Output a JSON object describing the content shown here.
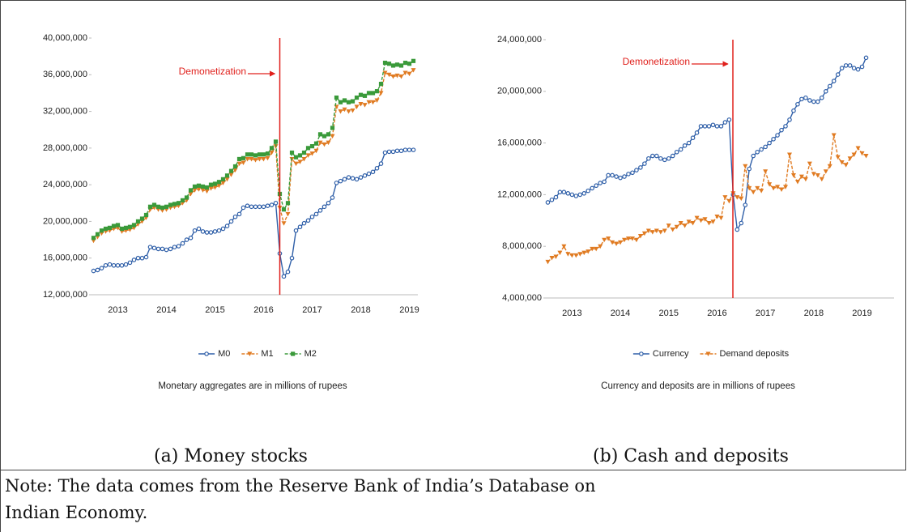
{
  "chart_data": [
    {
      "type": "line",
      "annotation": "Demonetization",
      "categories": [
        null,
        null,
        null,
        null,
        null,
        null,
        "2013",
        null,
        null,
        null,
        null,
        null,
        null,
        null,
        null,
        null,
        null,
        null,
        "2014",
        null,
        null,
        null,
        null,
        null,
        null,
        null,
        null,
        null,
        null,
        null,
        "2015",
        null,
        null,
        null,
        null,
        null,
        null,
        null,
        null,
        null,
        null,
        null,
        "2016",
        null,
        null,
        null,
        null,
        null,
        null,
        null,
        null,
        null,
        null,
        null,
        "2017",
        null,
        null,
        null,
        null,
        null,
        null,
        null,
        null,
        null,
        null,
        null,
        "2018",
        null,
        null,
        null,
        null,
        null,
        null,
        null,
        null,
        null,
        null,
        null,
        "2019",
        null
      ],
      "series": [
        {
          "name": "M0",
          "color": "#2f5fa8",
          "marker": "circle",
          "values": [
            14600000,
            14700000,
            14900000,
            15200000,
            15300000,
            15200000,
            15200000,
            15200000,
            15300000,
            15500000,
            15800000,
            16000000,
            16000000,
            16100000,
            17200000,
            17100000,
            17000000,
            17000000,
            16900000,
            17000000,
            17200000,
            17300000,
            17600000,
            18000000,
            18200000,
            19000000,
            19200000,
            18900000,
            18800000,
            18800000,
            18900000,
            19000000,
            19200000,
            19500000,
            20000000,
            20500000,
            20800000,
            21500000,
            21700000,
            21600000,
            21600000,
            21600000,
            21600000,
            21700000,
            21800000,
            22000000,
            16500000,
            14000000,
            14500000,
            16000000,
            19000000,
            19400000,
            19800000,
            20100000,
            20500000,
            20800000,
            21200000,
            21600000,
            22000000,
            22600000,
            24200000,
            24400000,
            24600000,
            24800000,
            24700000,
            24600000,
            24800000,
            25000000,
            25200000,
            25400000,
            25800000,
            26300000,
            27500000,
            27600000,
            27600000,
            27700000,
            27700000,
            27800000,
            27800000,
            27800000
          ]
        },
        {
          "name": "M1",
          "color": "#e07b22",
          "marker": "triangle",
          "values": [
            17900000,
            18300000,
            18700000,
            18900000,
            19000000,
            19200000,
            19300000,
            18900000,
            19000000,
            19100000,
            19300000,
            19700000,
            20000000,
            20400000,
            21300000,
            21500000,
            21300000,
            21200000,
            21300000,
            21500000,
            21600000,
            21700000,
            22000000,
            22300000,
            23000000,
            23400000,
            23500000,
            23400000,
            23300000,
            23600000,
            23700000,
            23900000,
            24200000,
            24600000,
            25100000,
            25600000,
            26300000,
            26400000,
            26800000,
            26800000,
            26700000,
            26800000,
            26800000,
            26900000,
            27500000,
            28200000,
            21500000,
            19800000,
            20800000,
            26800000,
            26300000,
            26500000,
            26800000,
            27200000,
            27400000,
            27700000,
            28600000,
            28400000,
            28600000,
            29300000,
            32500000,
            32000000,
            32200000,
            32000000,
            32100000,
            32500000,
            32800000,
            32700000,
            33000000,
            33000000,
            33200000,
            34000000,
            36200000,
            36000000,
            35800000,
            35900000,
            35800000,
            36200000,
            36100000,
            36500000
          ]
        },
        {
          "name": "M2",
          "color": "#3a9a3a",
          "marker": "square",
          "values": [
            18200000,
            18600000,
            19000000,
            19200000,
            19300000,
            19500000,
            19600000,
            19200000,
            19300000,
            19400000,
            19600000,
            20000000,
            20300000,
            20700000,
            21600000,
            21800000,
            21600000,
            21500000,
            21600000,
            21800000,
            21900000,
            22000000,
            22300000,
            22600000,
            23400000,
            23800000,
            23900000,
            23800000,
            23700000,
            24000000,
            24100000,
            24300000,
            24600000,
            25000000,
            25500000,
            26000000,
            26800000,
            26900000,
            27300000,
            27300000,
            27200000,
            27300000,
            27300000,
            27400000,
            28000000,
            28700000,
            23000000,
            21300000,
            22000000,
            27500000,
            27000000,
            27200000,
            27500000,
            28000000,
            28200000,
            28500000,
            29500000,
            29300000,
            29500000,
            30200000,
            33500000,
            33000000,
            33200000,
            33000000,
            33100000,
            33500000,
            33800000,
            33700000,
            34000000,
            34000000,
            34200000,
            35000000,
            37300000,
            37200000,
            37000000,
            37100000,
            37000000,
            37300000,
            37200000,
            37500000
          ]
        }
      ],
      "ylim": [
        12000000,
        40000000
      ],
      "yticks": [
        {
          "value": 12000000,
          "label": "12,000,000"
        },
        {
          "value": 16000000,
          "label": "16,000,000"
        },
        {
          "value": 20000000,
          "label": "20,000,000"
        },
        {
          "value": 24000000,
          "label": "24,000,000"
        },
        {
          "value": 28000000,
          "label": "28,000,000"
        },
        {
          "value": 32000000,
          "label": "32,000,000"
        },
        {
          "value": 36000000,
          "label": "36,000,000"
        },
        {
          "value": 40000000,
          "label": "40,000,000"
        }
      ],
      "description": "Monetary aggregates are in millions of rupees",
      "caption": "(a) Money stocks"
    },
    {
      "type": "line",
      "annotation": "Demonetization",
      "categories": [
        null,
        null,
        null,
        null,
        null,
        null,
        "2013",
        null,
        null,
        null,
        null,
        null,
        null,
        null,
        null,
        null,
        null,
        null,
        "2014",
        null,
        null,
        null,
        null,
        null,
        null,
        null,
        null,
        null,
        null,
        null,
        "2015",
        null,
        null,
        null,
        null,
        null,
        null,
        null,
        null,
        null,
        null,
        null,
        "2016",
        null,
        null,
        null,
        null,
        null,
        null,
        null,
        null,
        null,
        null,
        null,
        "2017",
        null,
        null,
        null,
        null,
        null,
        null,
        null,
        null,
        null,
        null,
        null,
        "2018",
        null,
        null,
        null,
        null,
        null,
        null,
        null,
        null,
        null,
        null,
        null,
        "2019",
        null
      ],
      "series": [
        {
          "name": "Currency",
          "color": "#2f5fa8",
          "marker": "circle",
          "values": [
            11400000,
            11600000,
            11800000,
            12200000,
            12200000,
            12100000,
            12000000,
            11900000,
            12000000,
            12100000,
            12300000,
            12500000,
            12700000,
            12900000,
            13000000,
            13500000,
            13500000,
            13400000,
            13300000,
            13400000,
            13600000,
            13700000,
            13900000,
            14100000,
            14400000,
            14800000,
            15000000,
            15000000,
            14800000,
            14700000,
            14800000,
            15000000,
            15300000,
            15500000,
            15800000,
            16000000,
            16400000,
            16800000,
            17300000,
            17300000,
            17300000,
            17400000,
            17300000,
            17300000,
            17600000,
            17800000,
            12000000,
            9300000,
            9800000,
            11200000,
            14000000,
            15000000,
            15300000,
            15500000,
            15700000,
            16000000,
            16300000,
            16600000,
            17000000,
            17300000,
            17800000,
            18500000,
            19000000,
            19400000,
            19500000,
            19300000,
            19200000,
            19200000,
            19500000,
            20000000,
            20400000,
            20800000,
            21300000,
            21800000,
            22000000,
            22000000,
            21800000,
            21700000,
            21900000,
            22600000
          ]
        },
        {
          "name": "Demand deposits",
          "color": "#e07b22",
          "marker": "triangle",
          "values": [
            6800000,
            7100000,
            7200000,
            7500000,
            8000000,
            7400000,
            7300000,
            7300000,
            7400000,
            7500000,
            7600000,
            7800000,
            7800000,
            8000000,
            8500000,
            8600000,
            8300000,
            8200000,
            8300000,
            8500000,
            8600000,
            8600000,
            8500000,
            8800000,
            9000000,
            9200000,
            9100000,
            9200000,
            9100000,
            9200000,
            9600000,
            9300000,
            9500000,
            9800000,
            9600000,
            9900000,
            9800000,
            10200000,
            10000000,
            10100000,
            9800000,
            9900000,
            10300000,
            10200000,
            11800000,
            11500000,
            12100000,
            11800000,
            11700000,
            14200000,
            12500000,
            12200000,
            12500000,
            12300000,
            13800000,
            12800000,
            12500000,
            12600000,
            12400000,
            12600000,
            15100000,
            13500000,
            13000000,
            13400000,
            13200000,
            14400000,
            13600000,
            13500000,
            13200000,
            13800000,
            14200000,
            16600000,
            14900000,
            14500000,
            14300000,
            14800000,
            15100000,
            15600000,
            15200000,
            15000000
          ]
        }
      ],
      "ylim": [
        4000000,
        24000000
      ],
      "yticks": [
        {
          "value": 4000000,
          "label": "4,000,000"
        },
        {
          "value": 8000000,
          "label": "8,000,000"
        },
        {
          "value": 12000000,
          "label": "12,000,000"
        },
        {
          "value": 16000000,
          "label": "16,000,000"
        },
        {
          "value": 20000000,
          "label": "20,000,000"
        },
        {
          "value": 24000000,
          "label": "24,000,000"
        }
      ],
      "description": "Currency and deposits are in millions of rupees",
      "caption": "(b) Cash and deposits"
    }
  ],
  "note": "Note: The data comes from the Reserve Bank of India’s Database on Indian Economy."
}
